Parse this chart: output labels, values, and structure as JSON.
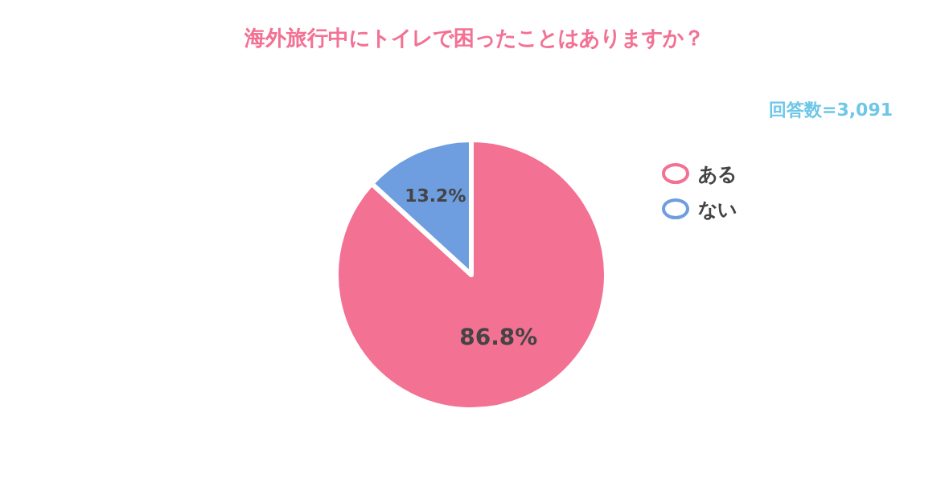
{
  "chart_data": {
    "type": "pie",
    "title": "海外旅行中にトイレで困ったことはありますか？",
    "annotations": [
      "回答数=3,091"
    ],
    "categories": [
      "ある",
      "ない"
    ],
    "values": [
      86.8,
      13.2
    ],
    "colors": [
      "#f37193",
      "#6e9de0"
    ],
    "value_labels": [
      "86.8%",
      "13.2%"
    ],
    "legend": "top right"
  }
}
